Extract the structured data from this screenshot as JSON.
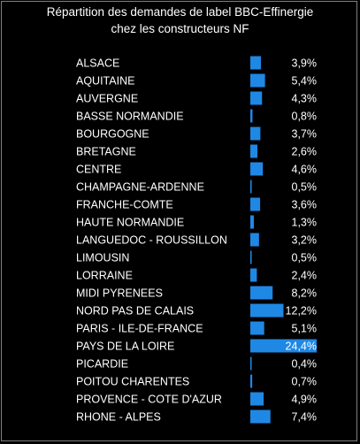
{
  "chart_data": {
    "type": "bar",
    "orientation": "horizontal",
    "title_line1": "Répartition des demandes de label BBC-Effinergie",
    "title_line2": "chez les constructeurs NF",
    "bar_color": "#1f88e5",
    "categories": [
      "ALSACE",
      "AQUITAINE",
      "AUVERGNE",
      "BASSE NORMANDIE",
      "BOURGOGNE",
      "BRETAGNE",
      "CENTRE",
      "CHAMPAGNE-ARDENNE",
      "FRANCHE-COMTE",
      "HAUTE NORMANDIE",
      "LANGUEDOC - ROUSSILLON",
      "LIMOUSIN",
      "LORRAINE",
      "MIDI PYRENEES",
      "NORD PAS DE CALAIS",
      "PARIS - ILE-DE-FRANCE",
      "PAYS DE LA LOIRE",
      "PICARDIE",
      "POITOU CHARENTES",
      "PROVENCE - COTE D'AZUR",
      "RHONE - ALPES"
    ],
    "values": [
      3.9,
      5.4,
      4.3,
      0.8,
      3.7,
      2.6,
      4.6,
      0.5,
      3.6,
      1.3,
      3.2,
      0.5,
      2.4,
      8.2,
      12.2,
      5.1,
      24.4,
      0.4,
      0.7,
      4.9,
      7.4
    ],
    "labels": [
      "3,9%",
      "5,4%",
      "4,3%",
      "0,8%",
      "3,7%",
      "2,6%",
      "4,6%",
      "0,5%",
      "3,6%",
      "1,3%",
      "3,2%",
      "0,5%",
      "2,4%",
      "8,2%",
      "12,2%",
      "5,1%",
      "24,4%",
      "0,4%",
      "0,7%",
      "4,9%",
      "7,4%"
    ],
    "xlim": [
      0,
      24.4
    ]
  }
}
